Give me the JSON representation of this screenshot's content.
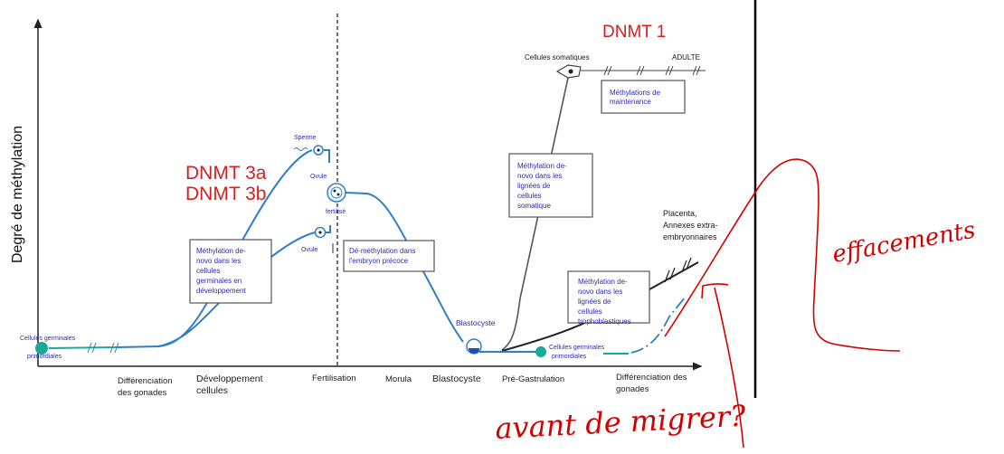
{
  "y_axis_label": "Degré de méthylation",
  "enzymes": {
    "dnmt1": "DNMT 1",
    "dnmt3a": "DNMT 3a",
    "dnmt3b": "DNMT 3b"
  },
  "x_axis_labels": [
    {
      "line1": "Différenciation",
      "line2": "des gonades"
    },
    {
      "line1": "Développement",
      "line2": "cellules"
    },
    {
      "line1": "Fertilisation",
      "line2": ""
    },
    {
      "line1": "Morula",
      "line2": ""
    },
    {
      "line1": "Blastocyste",
      "line2": ""
    },
    {
      "line1": "Pré-Gastrulation",
      "line2": ""
    },
    {
      "line1": "Différenciation des",
      "line2": "gonades"
    }
  ],
  "labels": {
    "pgc_left_1": "Cellules germinales",
    "pgc_left_2": "primordiales",
    "sperme": "Sperme",
    "ovule_top": "Ovule",
    "fertilise": "fertilisé",
    "ovule_bottom": "Ovule",
    "blastocyste": "Blastocyste",
    "cellules_somatiques": "Cellules somatiques",
    "adulte": "ADULTE",
    "placenta_1": "Placenta,",
    "placenta_2": "Annexes extra-",
    "placenta_3": "embryonnaires",
    "pgc_right_1": "Cellules germinales",
    "pgc_right_2": "primordiales"
  },
  "boxes": {
    "germinal": [
      "Méthylation de-",
      "novo dans les",
      "cellules",
      "germinales en",
      "développement"
    ],
    "demethylation": [
      "Dé-méthylation dans",
      "l'embryon précoce"
    ],
    "somatic": [
      "Méthylation de-",
      "novo dans les",
      "lignées de",
      "cellules",
      "somatique"
    ],
    "maintenance": [
      "Méthylations de",
      "maintenance"
    ],
    "trophoblast": [
      "Méthylation de-",
      "novo dans les",
      "lignées de",
      "cellules",
      "trophoblastiques"
    ]
  },
  "annotations": {
    "effacements": "effacements",
    "question": "avant de migrer?"
  },
  "colors": {
    "curve": "#2f7fc8",
    "teal": "#1aa89a",
    "enzyme_red": "#d81e1e",
    "ink_red": "#d40000",
    "box_text": "#2a2ab0"
  }
}
